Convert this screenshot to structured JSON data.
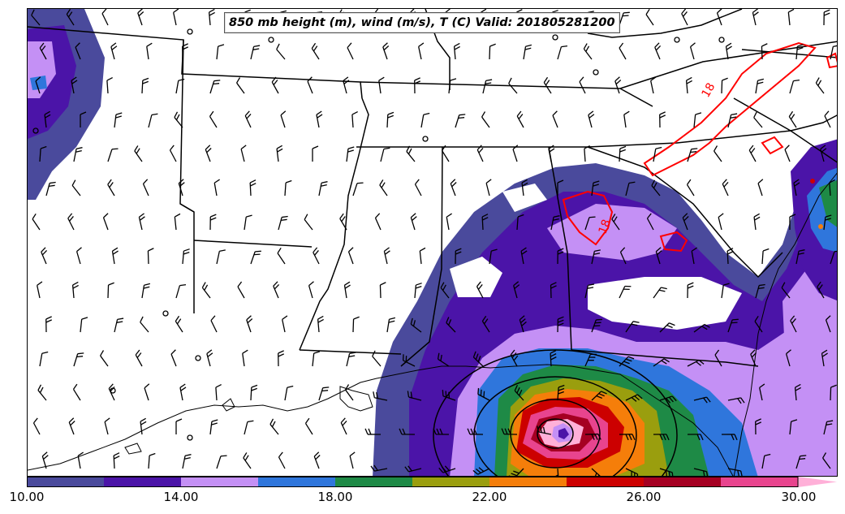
{
  "title": "850 mb height (m), wind (m/s), T (C) Valid: 201805281200",
  "colorbar": {
    "colors": [
      "#4a4a9c",
      "#4b14a8",
      "#c490f5",
      "#2f76dc",
      "#1e8a46",
      "#9a9e0e",
      "#f57e0a",
      "#cc0000",
      "#a50022",
      "#e8448e",
      "#ffb0d8"
    ],
    "tick_labels": [
      "10.00",
      "14.00",
      "18.00",
      "22.00",
      "26.00",
      "30.00"
    ]
  },
  "temperature_contour": {
    "color": "#ff0000",
    "labels": [
      "18",
      "18"
    ]
  },
  "height_contour_color": "#000000"
}
